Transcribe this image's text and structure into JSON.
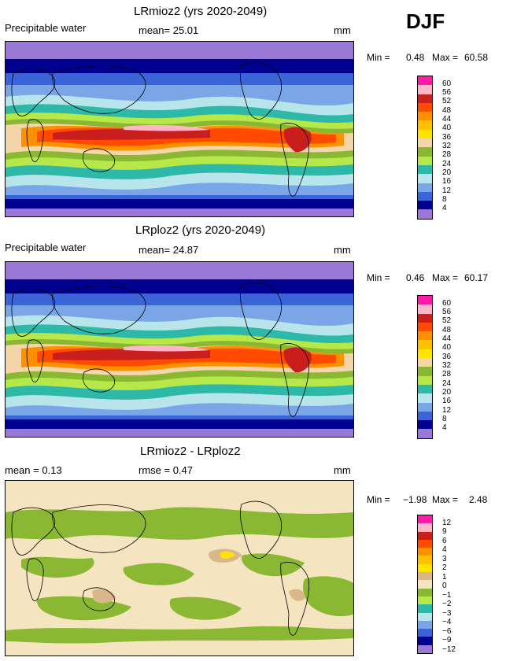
{
  "season": "DJF",
  "panels": [
    {
      "title": "LRmioz2 (yrs 2020-2049)",
      "left_label": "Precipitable water",
      "center_label": "mean=  25.01",
      "unit": "mm",
      "min_label": "Min =",
      "min_value": "0.48",
      "max_label": "Max =",
      "max_value": "60.58",
      "scale_labels": [
        "60",
        "56",
        "52",
        "48",
        "44",
        "40",
        "36",
        "32",
        "28",
        "24",
        "20",
        "16",
        "12",
        "8",
        "4"
      ]
    },
    {
      "title": "LRploz2 (yrs 2020-2049)",
      "left_label": "Precipitable water",
      "center_label": "mean=  24.87",
      "unit": "mm",
      "min_label": "Min =",
      "min_value": "0.46",
      "max_label": "Max =",
      "max_value": "60.17",
      "scale_labels": [
        "60",
        "56",
        "52",
        "48",
        "44",
        "40",
        "36",
        "32",
        "28",
        "24",
        "20",
        "16",
        "12",
        "8",
        "4"
      ]
    },
    {
      "title": "LRmioz2 - LRploz2",
      "left_label": "mean =   0.13",
      "center_label": "rmse =   0.47",
      "unit": "mm",
      "min_label": "Min =",
      "min_value": "−1.98",
      "max_label": "Max =",
      "max_value": "2.48",
      "scale_labels": [
        "12",
        "9",
        "6",
        "4",
        "3",
        "2",
        "1",
        "0",
        "−1",
        "−2",
        "−3",
        "−4",
        "−6",
        "−9",
        "−12"
      ]
    }
  ],
  "colors": {
    "full_scale": [
      "#ff1aa8",
      "#ffb6c8",
      "#c81e1e",
      "#ff4a00",
      "#ff9000",
      "#ffc000",
      "#ffe400",
      "#f4d6a8",
      "#8ab832",
      "#b6e84a",
      "#2eb8a8",
      "#b8e4ec",
      "#7aa6e8",
      "#3a64d8",
      "#000090",
      "#9a78d8"
    ],
    "diff_scale": [
      "#ff1aa8",
      "#ffb6c8",
      "#c81e1e",
      "#ff4a00",
      "#ff9000",
      "#ffc000",
      "#ffe400",
      "#d8b88a",
      "#f4e4c0",
      "#8ab832",
      "#b6e84a",
      "#2eb8a8",
      "#b8e4ec",
      "#7aa6e8",
      "#3a64d8",
      "#000090",
      "#9a78d8"
    ]
  }
}
